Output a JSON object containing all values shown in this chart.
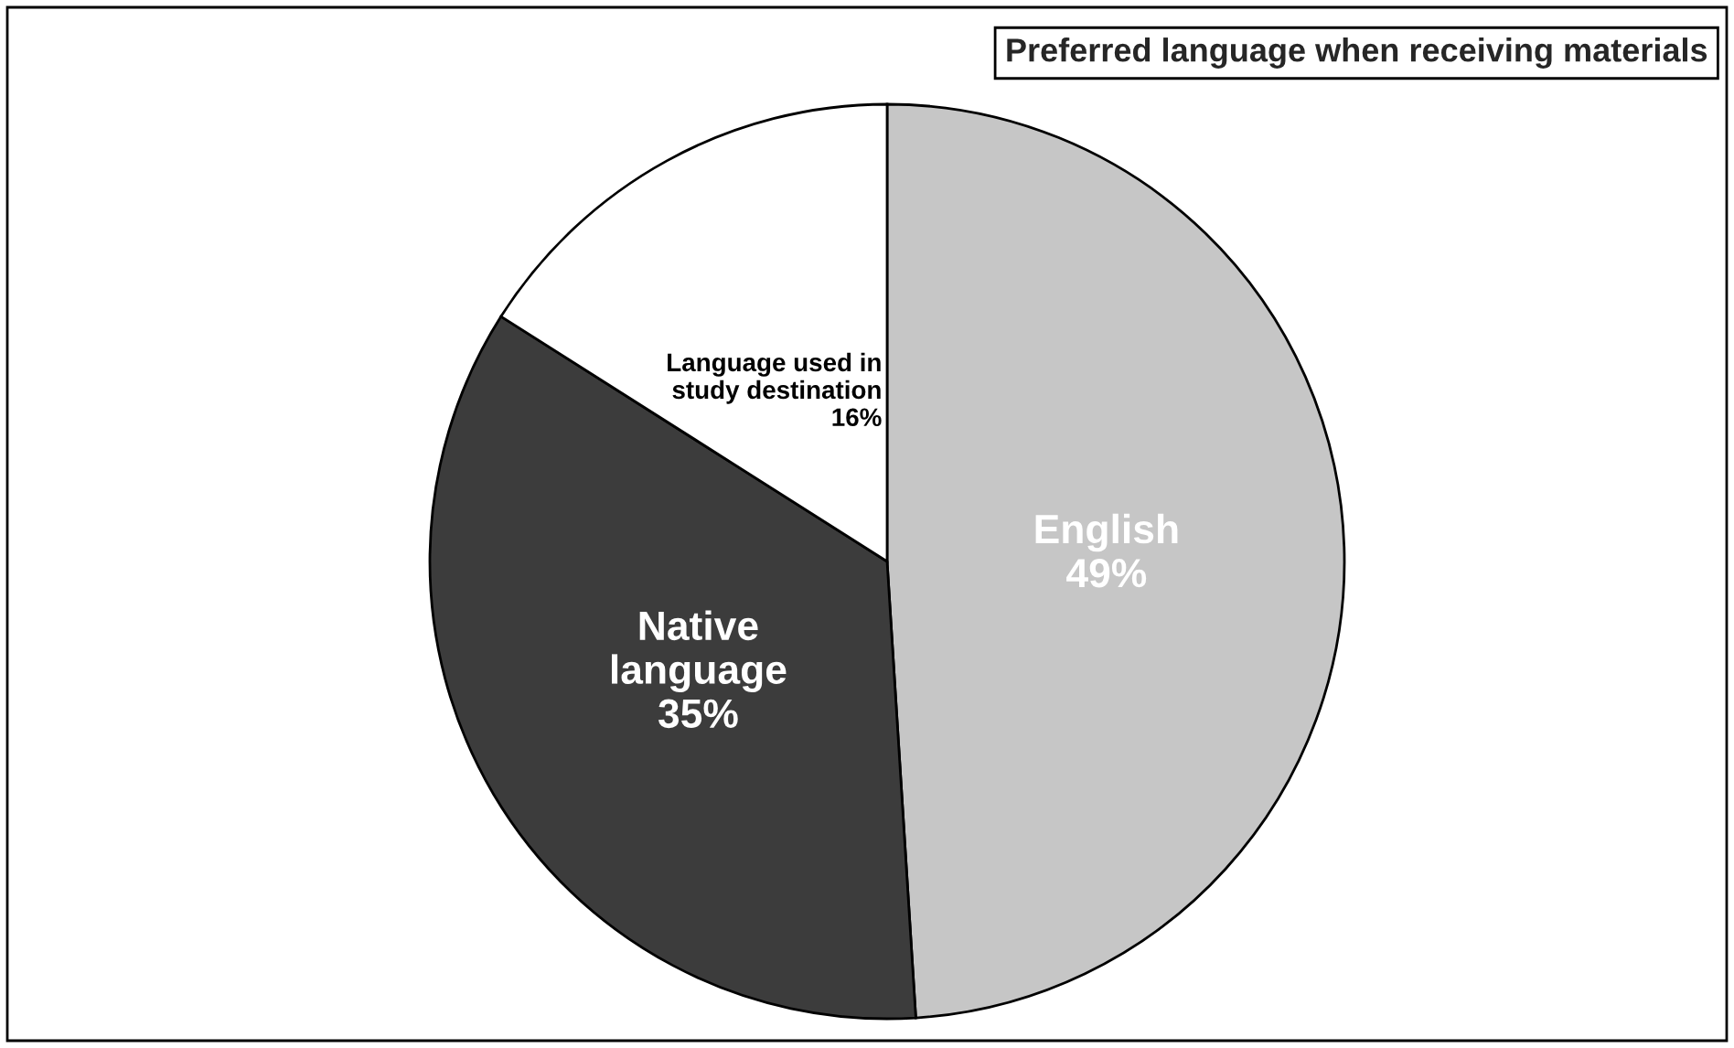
{
  "chart_data": {
    "type": "pie",
    "title": "Preferred language when receiving materials",
    "categories": [
      "English",
      "Native\nlanguage",
      "Language used in\nstudy destination"
    ],
    "values": [
      49,
      35,
      16
    ],
    "colors": [
      "#c6c6c6",
      "#3c3c3c",
      "#ffffff"
    ],
    "value_labels": [
      "49%",
      "35%",
      "16%"
    ],
    "legend": false
  }
}
